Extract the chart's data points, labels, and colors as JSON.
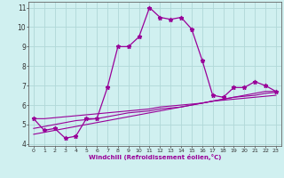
{
  "x": [
    0,
    1,
    2,
    3,
    4,
    5,
    6,
    7,
    8,
    9,
    10,
    11,
    12,
    13,
    14,
    15,
    16,
    17,
    18,
    19,
    20,
    21,
    22,
    23
  ],
  "y_main": [
    5.3,
    4.7,
    4.8,
    4.3,
    4.4,
    5.3,
    5.3,
    6.9,
    9.0,
    9.0,
    9.5,
    11.0,
    10.5,
    10.4,
    10.5,
    9.9,
    8.3,
    6.5,
    6.4,
    6.9,
    6.9,
    7.2,
    7.0,
    6.7
  ],
  "y_line1": [
    4.5,
    4.6,
    4.7,
    4.8,
    4.9,
    5.0,
    5.1,
    5.2,
    5.3,
    5.4,
    5.5,
    5.6,
    5.7,
    5.8,
    5.9,
    6.0,
    6.1,
    6.2,
    6.3,
    6.4,
    6.5,
    6.6,
    6.7,
    6.7
  ],
  "y_line2": [
    4.8,
    4.9,
    5.0,
    5.1,
    5.2,
    5.25,
    5.3,
    5.4,
    5.5,
    5.6,
    5.65,
    5.7,
    5.8,
    5.85,
    5.9,
    6.0,
    6.1,
    6.2,
    6.3,
    6.4,
    6.45,
    6.5,
    6.6,
    6.65
  ],
  "y_line3": [
    5.3,
    5.3,
    5.35,
    5.4,
    5.45,
    5.5,
    5.55,
    5.6,
    5.65,
    5.7,
    5.75,
    5.8,
    5.9,
    5.95,
    6.0,
    6.05,
    6.1,
    6.2,
    6.25,
    6.3,
    6.35,
    6.4,
    6.45,
    6.5
  ],
  "color": "#990099",
  "bg_color": "#d0f0f0",
  "grid_color": "#b0d8d8",
  "xlabel": "Windchill (Refroidissement éolien,°C)",
  "ylim": [
    3.9,
    11.3
  ],
  "xlim": [
    -0.5,
    23.5
  ],
  "yticks": [
    4,
    5,
    6,
    7,
    8,
    9,
    10,
    11
  ],
  "xticks": [
    0,
    1,
    2,
    3,
    4,
    5,
    6,
    7,
    8,
    9,
    10,
    11,
    12,
    13,
    14,
    15,
    16,
    17,
    18,
    19,
    20,
    21,
    22,
    23
  ]
}
